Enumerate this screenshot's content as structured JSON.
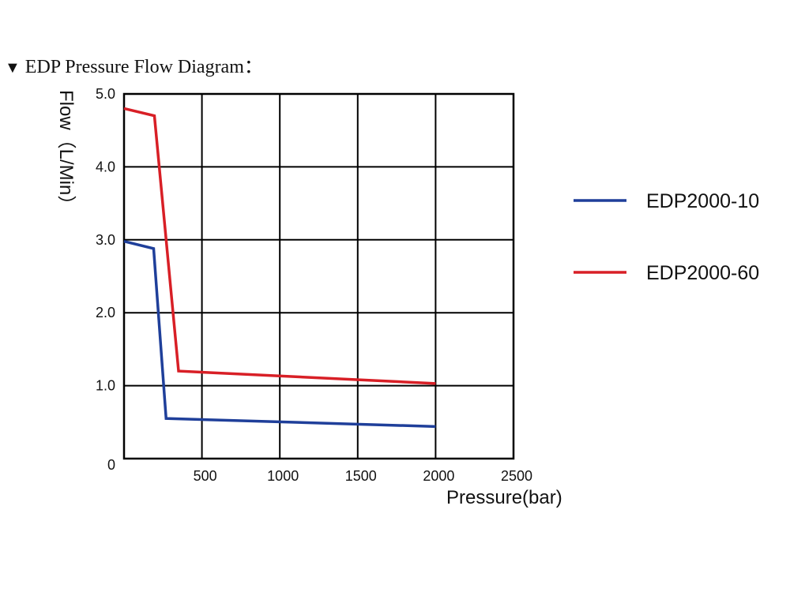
{
  "header": {
    "marker": "▼",
    "title": "EDP Pressure Flow Diagram："
  },
  "chart_data": {
    "type": "line",
    "xlabel": "Pressure(bar)",
    "ylabel": "Flow（L/Min）",
    "xlim": [
      0,
      2500
    ],
    "ylim": [
      0,
      5
    ],
    "xticks": [
      500,
      1000,
      1500,
      2000,
      2500
    ],
    "xtick_labels": [
      "500",
      "1000",
      "1500",
      "2000",
      "2500"
    ],
    "yticks": [
      0,
      1,
      2,
      3,
      4,
      5
    ],
    "ytick_labels": [
      "0",
      "1.0",
      "2.0",
      "3.0",
      "4.0",
      "5.0"
    ],
    "grid": true,
    "legend_position": "right",
    "series": [
      {
        "name": "EDP2000-10",
        "color": "#1f3f9a",
        "points": [
          [
            0,
            2.98
          ],
          [
            190,
            2.88
          ],
          [
            270,
            0.55
          ],
          [
            2000,
            0.44
          ]
        ]
      },
      {
        "name": "EDP2000-60",
        "color": "#d81f26",
        "points": [
          [
            0,
            4.8
          ],
          [
            195,
            4.7
          ],
          [
            350,
            1.2
          ],
          [
            2000,
            1.03
          ]
        ]
      }
    ]
  }
}
